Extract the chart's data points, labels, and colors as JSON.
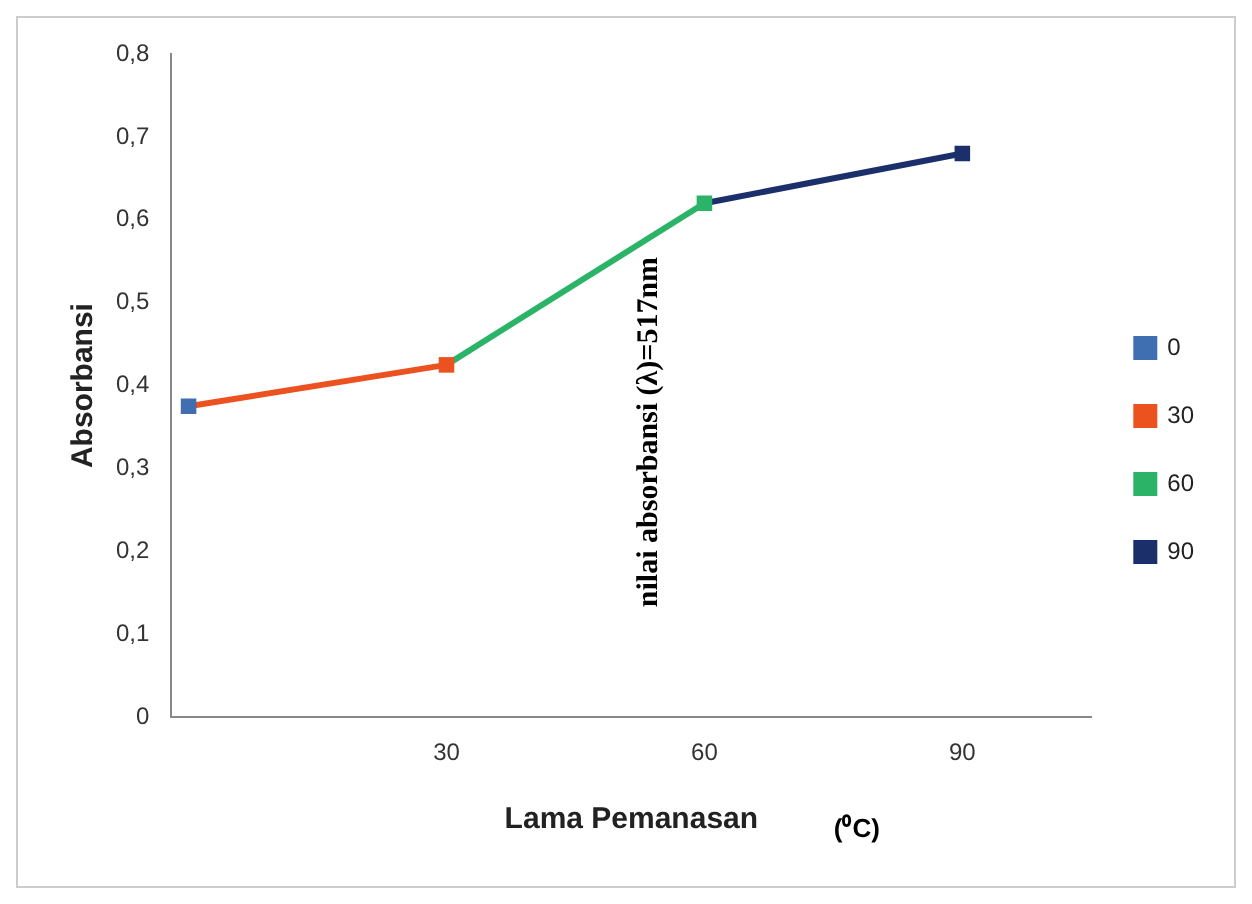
{
  "chart_data": {
    "type": "line",
    "xlabel": "Lama Pemanasan",
    "ylabel": "Absorbansi",
    "annotations": [
      "nilai absorbansi (λ)=517nm",
      "(⁰C)"
    ],
    "x": [
      0,
      30,
      60,
      90
    ],
    "xlim": [
      -2,
      105
    ],
    "xticks": [
      30,
      60,
      90
    ],
    "ylim": [
      0,
      0.8
    ],
    "yticks": [
      0,
      {
        "value": 0.1,
        "label": "0,1"
      },
      {
        "value": 0.2,
        "label": "0,2"
      },
      {
        "value": 0.3,
        "label": "0,3"
      },
      {
        "value": 0.4,
        "label": "0,4"
      },
      {
        "value": 0.5,
        "label": "0,5"
      },
      {
        "value": 0.6,
        "label": "0,6"
      },
      {
        "value": 0.7,
        "label": "0,7"
      },
      {
        "value": 0.8,
        "label": "0,8"
      }
    ],
    "grid": false,
    "legend": "right",
    "marker": "square",
    "line_style": "solid",
    "series": [
      {
        "name": "0",
        "color": "#3f6fb0",
        "values": [
          0.375,
          null,
          null,
          null
        ]
      },
      {
        "name": "30",
        "color": "#ec5220",
        "values": [
          0.375,
          0.425,
          null,
          null
        ]
      },
      {
        "name": "60",
        "color": "#2bb467",
        "values": [
          null,
          0.425,
          0.62,
          null
        ]
      },
      {
        "name": "90",
        "color": "#1b2f6b",
        "values": [
          null,
          null,
          0.62,
          0.68
        ]
      }
    ]
  }
}
